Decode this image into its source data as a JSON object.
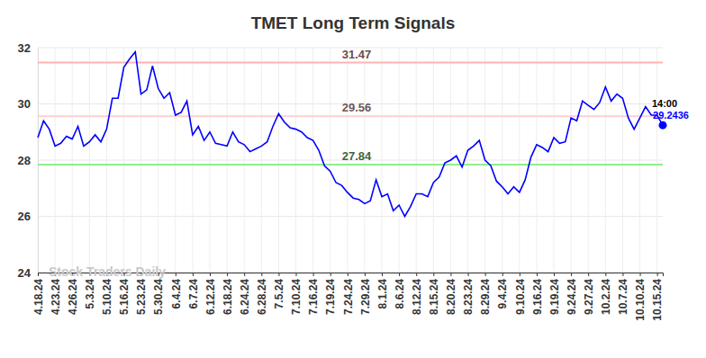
{
  "chart_data": {
    "type": "line",
    "title": "TMET Long Term Signals",
    "watermark": "Stock Traders Daily",
    "categories": [
      "4.18.24",
      null,
      null,
      "4.23.24",
      null,
      null,
      "4.26.24",
      null,
      null,
      "5.3.24",
      null,
      null,
      "5.10.24",
      null,
      null,
      "5.16.24",
      null,
      null,
      "5.23.24",
      null,
      null,
      "5.30.24",
      null,
      null,
      "6.4.24",
      null,
      null,
      "6.7.24",
      null,
      null,
      "6.12.24",
      null,
      null,
      "6.18.24",
      null,
      null,
      "6.24.24",
      null,
      null,
      "6.28.24",
      null,
      null,
      "7.5.24",
      null,
      null,
      "7.10.24",
      null,
      null,
      "7.16.24",
      null,
      null,
      "7.19.24",
      null,
      null,
      "7.24.24",
      null,
      null,
      "7.29.24",
      null,
      null,
      "8.1.24",
      null,
      null,
      "8.6.24",
      null,
      null,
      "8.12.24",
      null,
      null,
      "8.15.24",
      null,
      null,
      "8.20.24",
      null,
      null,
      "8.23.24",
      null,
      null,
      "8.29.24",
      null,
      null,
      "9.4.24",
      null,
      null,
      "9.10.24",
      null,
      null,
      "9.16.24",
      null,
      null,
      "9.19.24",
      null,
      null,
      "9.24.24",
      null,
      null,
      "9.27.24",
      null,
      null,
      "10.2.24",
      null,
      null,
      "10.7.24",
      null,
      null,
      "10.10.24",
      null,
      null,
      "10.15.24",
      null
    ],
    "series": [
      {
        "color": "#0000ff",
        "values": [
          28.8,
          29.4,
          29.1,
          28.5,
          28.6,
          28.85,
          28.75,
          29.2,
          28.5,
          28.65,
          28.9,
          28.65,
          29.1,
          30.2,
          30.2,
          31.3,
          31.6,
          31.85,
          30.35,
          30.5,
          31.35,
          30.55,
          30.2,
          30.4,
          29.6,
          29.7,
          30.1,
          28.9,
          29.2,
          28.7,
          29.0,
          28.6,
          28.55,
          28.5,
          29.0,
          28.65,
          28.55,
          28.3,
          28.4,
          28.5,
          28.65,
          29.2,
          29.65,
          29.35,
          29.15,
          29.1,
          29.0,
          28.8,
          28.7,
          28.35,
          27.8,
          27.6,
          27.2,
          27.1,
          26.85,
          26.65,
          26.6,
          26.45,
          26.55,
          27.3,
          26.7,
          26.8,
          26.2,
          26.4,
          26.0,
          26.35,
          26.8,
          26.8,
          26.7,
          27.2,
          27.4,
          27.9,
          28.0,
          28.15,
          27.75,
          28.35,
          28.5,
          28.7,
          28.0,
          27.8,
          27.25,
          27.05,
          26.8,
          27.05,
          26.85,
          27.3,
          28.1,
          28.55,
          28.45,
          28.3,
          28.8,
          28.6,
          28.65,
          29.5,
          29.4,
          30.1,
          29.95,
          29.8,
          30.05,
          30.6,
          30.1,
          30.35,
          30.2,
          29.5,
          29.1,
          29.5,
          29.9,
          29.6,
          29.6,
          29.2436
        ]
      }
    ],
    "last_point": {
      "label": "14:00",
      "value_label": "29.2436"
    },
    "reference_lines": [
      {
        "value": 31.47,
        "label": "31.47",
        "color": "#ffb3b3"
      },
      {
        "value": 29.56,
        "label": "29.56",
        "color": "#ffd0d0"
      },
      {
        "value": 27.84,
        "label": "27.84",
        "color": "#90ee90"
      }
    ],
    "ylim": [
      24,
      32
    ],
    "yticks": [
      24,
      26,
      28,
      30,
      32
    ],
    "grid": true
  }
}
